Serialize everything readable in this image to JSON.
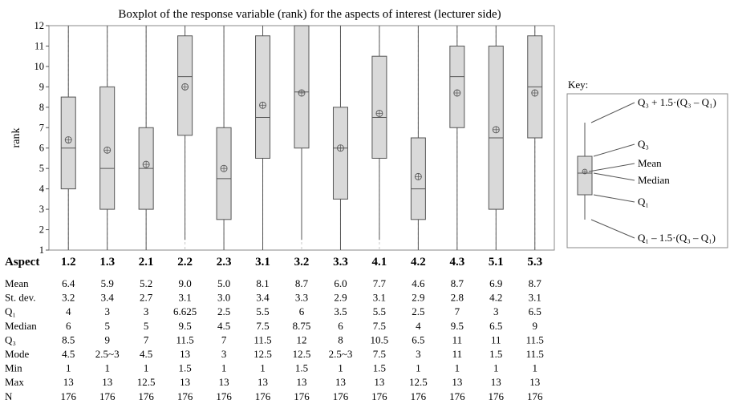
{
  "chart_data": {
    "type": "box",
    "title": "Boxplot of the response variable (rank) for the aspects of interest (lecturer side)",
    "ylabel": "rank",
    "ylim": [
      1,
      12
    ],
    "yticks": [
      "1",
      "2",
      "3",
      "4",
      "5",
      "6",
      "7",
      "8",
      "9",
      "10",
      "11",
      "12"
    ],
    "grid": "vertical dashed",
    "categories": [
      "1.2",
      "1.3",
      "2.1",
      "2.2",
      "2.3",
      "3.1",
      "3.2",
      "3.3",
      "4.1",
      "4.2",
      "4.3",
      "5.1",
      "5.3"
    ],
    "boxes": [
      {
        "category": "1.2",
        "whisker_low": 1,
        "q1": 4,
        "median": 6,
        "q3": 8.5,
        "whisker_high": 12,
        "mean": 6.4
      },
      {
        "category": "1.3",
        "whisker_low": 1,
        "q1": 3,
        "median": 5,
        "q3": 9,
        "whisker_high": 12,
        "mean": 5.9
      },
      {
        "category": "2.1",
        "whisker_low": 1,
        "q1": 3,
        "median": 5,
        "q3": 7,
        "whisker_high": 12,
        "mean": 5.2
      },
      {
        "category": "2.2",
        "whisker_low": 1.5,
        "q1": 6.625,
        "median": 9.5,
        "q3": 11.5,
        "whisker_high": 12,
        "mean": 9.0
      },
      {
        "category": "2.3",
        "whisker_low": 1,
        "q1": 2.5,
        "median": 4.5,
        "q3": 7,
        "whisker_high": 12,
        "mean": 5.0
      },
      {
        "category": "3.1",
        "whisker_low": 1,
        "q1": 5.5,
        "median": 7.5,
        "q3": 11.5,
        "whisker_high": 12,
        "mean": 8.1
      },
      {
        "category": "3.2",
        "whisker_low": 1.5,
        "q1": 6,
        "median": 8.75,
        "q3": 12,
        "whisker_high": 12,
        "mean": 8.7
      },
      {
        "category": "3.3",
        "whisker_low": 1,
        "q1": 3.5,
        "median": 6,
        "q3": 8,
        "whisker_high": 12,
        "mean": 6.0
      },
      {
        "category": "4.1",
        "whisker_low": 1.5,
        "q1": 5.5,
        "median": 7.5,
        "q3": 10.5,
        "whisker_high": 12,
        "mean": 7.7
      },
      {
        "category": "4.2",
        "whisker_low": 1,
        "q1": 2.5,
        "median": 4,
        "q3": 6.5,
        "whisker_high": 12,
        "mean": 4.6
      },
      {
        "category": "4.3",
        "whisker_low": 1,
        "q1": 7,
        "median": 9.5,
        "q3": 11,
        "whisker_high": 12,
        "mean": 8.7
      },
      {
        "category": "5.1",
        "whisker_low": 1,
        "q1": 3,
        "median": 6.5,
        "q3": 11,
        "whisker_high": 12,
        "mean": 6.9
      },
      {
        "category": "5.3",
        "whisker_low": 1,
        "q1": 6.5,
        "median": 9,
        "q3": 11.5,
        "whisker_high": 12,
        "mean": 8.7
      }
    ],
    "colors": {
      "box_fill": "#d9d9d9",
      "stroke": "#555555",
      "grid": "#c8c8c8"
    }
  },
  "key": {
    "title": "Key:",
    "labels": {
      "upper": "Q₃ + 1.5·(Q₃ – Q₁)",
      "q3": "Q₃",
      "mean": "Mean",
      "median": "Median",
      "q1": "Q₁",
      "lower": "Q₁ – 1.5·(Q₃ – Q₁)"
    }
  },
  "table": {
    "header_label": "Aspect",
    "rows": [
      {
        "label": "Mean",
        "values": [
          "6.4",
          "5.9",
          "5.2",
          "9.0",
          "5.0",
          "8.1",
          "8.7",
          "6.0",
          "7.7",
          "4.6",
          "8.7",
          "6.9",
          "8.7"
        ]
      },
      {
        "label": "St. dev.",
        "values": [
          "3.2",
          "3.4",
          "2.7",
          "3.1",
          "3.0",
          "3.4",
          "3.3",
          "2.9",
          "3.1",
          "2.9",
          "2.8",
          "4.2",
          "3.1"
        ]
      },
      {
        "label": "Q₁",
        "values": [
          "4",
          "3",
          "3",
          "6.625",
          "2.5",
          "5.5",
          "6",
          "3.5",
          "5.5",
          "2.5",
          "7",
          "3",
          "6.5"
        ]
      },
      {
        "label": "Median",
        "values": [
          "6",
          "5",
          "5",
          "9.5",
          "4.5",
          "7.5",
          "8.75",
          "6",
          "7.5",
          "4",
          "9.5",
          "6.5",
          "9"
        ]
      },
      {
        "label": "Q₃",
        "values": [
          "8.5",
          "9",
          "7",
          "11.5",
          "7",
          "11.5",
          "12",
          "8",
          "10.5",
          "6.5",
          "11",
          "11",
          "11.5"
        ]
      },
      {
        "label": "Mode",
        "values": [
          "4.5",
          "2.5~3",
          "4.5",
          "13",
          "3",
          "12.5",
          "12.5",
          "2.5~3",
          "7.5",
          "3",
          "11",
          "1.5",
          "11.5"
        ]
      },
      {
        "label": "Min",
        "values": [
          "1",
          "1",
          "1",
          "1.5",
          "1",
          "1",
          "1.5",
          "1",
          "1.5",
          "1",
          "1",
          "1",
          "1"
        ]
      },
      {
        "label": "Max",
        "values": [
          "13",
          "13",
          "12.5",
          "13",
          "13",
          "13",
          "13",
          "13",
          "13",
          "12.5",
          "13",
          "13",
          "13"
        ]
      },
      {
        "label": "N",
        "values": [
          "176",
          "176",
          "176",
          "176",
          "176",
          "176",
          "176",
          "176",
          "176",
          "176",
          "176",
          "176",
          "176"
        ]
      }
    ]
  }
}
